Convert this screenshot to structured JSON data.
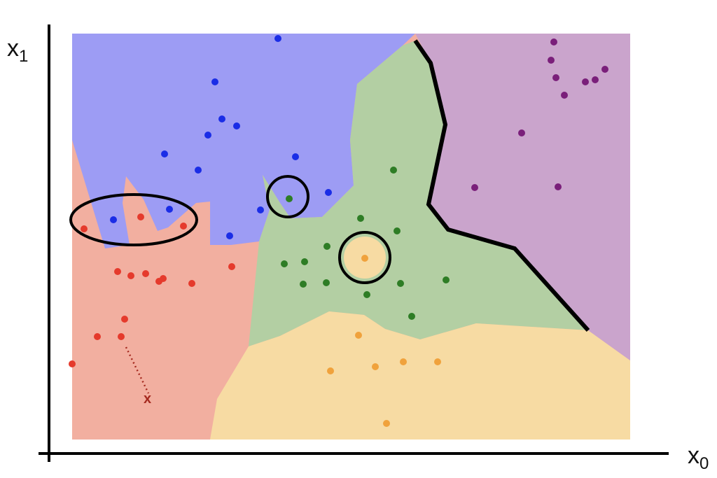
{
  "axes": {
    "x_label": "x",
    "x_sub": "0",
    "y_label": "x",
    "y_sub": "1"
  },
  "query_marker": "x",
  "colors": {
    "red_region": "#f2afa0",
    "blue_region": "#9d9cf4",
    "green_region": "#b3cfa3",
    "yellow_region": "#f7dba3",
    "purple_region": "#caa4cc",
    "red_point": "#e53a2c",
    "blue_point": "#1a2de6",
    "green_point": "#2e7d25",
    "yellow_point": "#f0a23c",
    "purple_point": "#7a1f7a",
    "query": "#a52a1f"
  },
  "classes": [
    "red",
    "blue",
    "green",
    "yellow",
    "purple"
  ]
}
